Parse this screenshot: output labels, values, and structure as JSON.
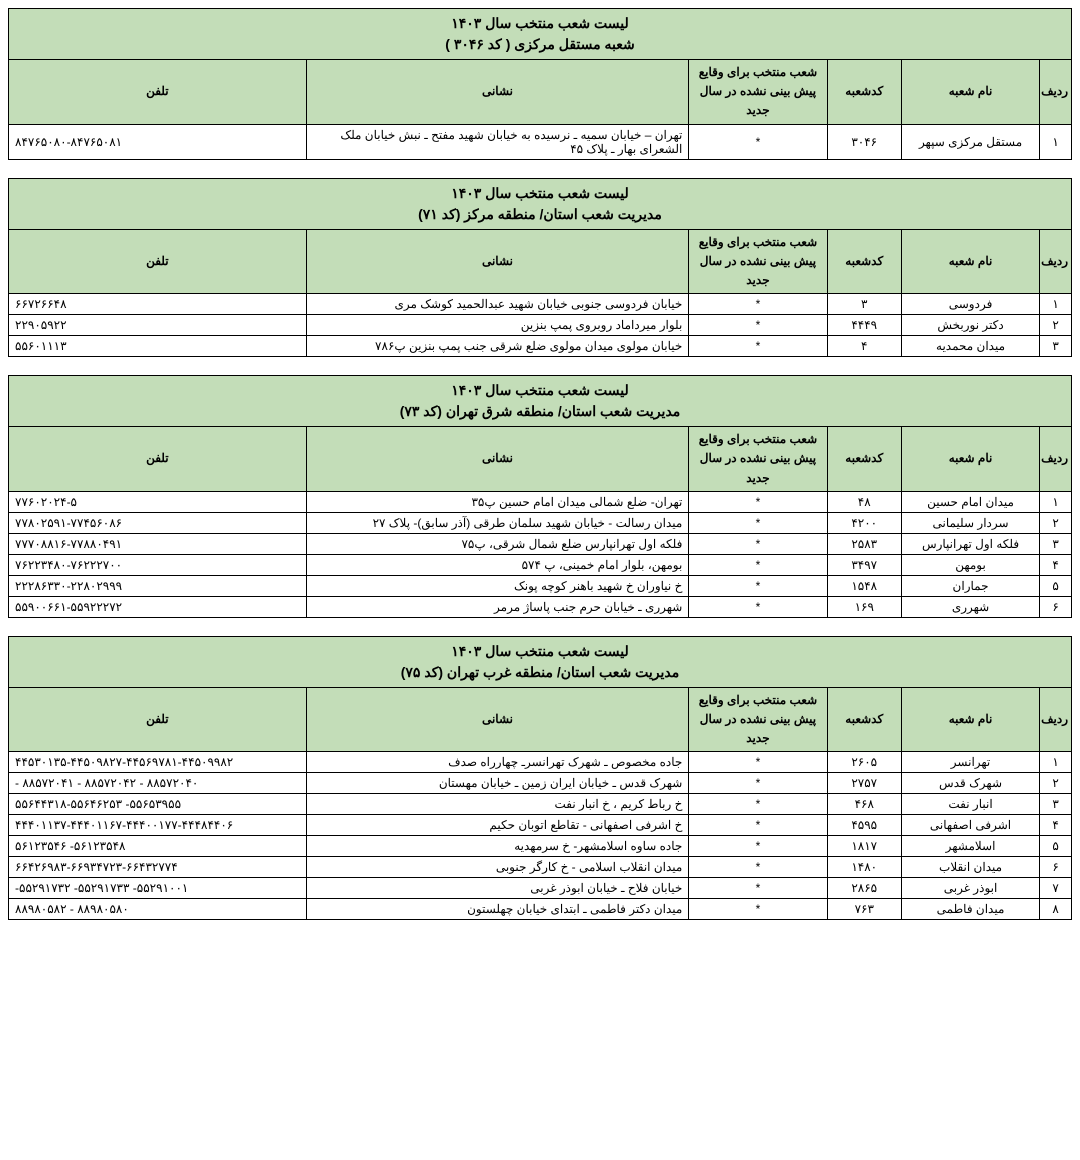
{
  "columns": [
    "ردیف",
    "نام شعبه",
    "کدشعبه",
    "شعب منتخب برای وقایع پیش بینی نشده در سال جدید",
    "نشانی",
    "تلفن"
  ],
  "sections": [
    {
      "title1": "لیست شعب منتخب  سال ۱۴۰۳",
      "title2": "شعبه مستقل مرکزی  ( کد ۳۰۴۶ )",
      "rows": [
        {
          "n": "۱",
          "name": "مستقل مرکزی سپهر",
          "code": "۳۰۴۶",
          "sel": "*",
          "addr": "تهران – خیابان سمیه ـ نرسیده به خیابان شهید مفتح ـ نبش خیابان ملک الشعرای بهار ـ پلاک ۴۵",
          "phone": "۸۴۷۶۵۰۸۰-۸۴۷۶۵۰۸۱"
        }
      ]
    },
    {
      "title1": "لیست شعب منتخب  سال ۱۴۰۳",
      "title2": "مدیریت شعب استان/ منطقه مرکز (کد ۷۱)",
      "rows": [
        {
          "n": "۱",
          "name": "فردوسی",
          "code": "۳",
          "sel": "*",
          "addr": "خیابان فردوسی جنوبی خیابان شهید عبدالحمید کوشک مری",
          "phone": "۶۶۷۲۶۶۴۸"
        },
        {
          "n": "۲",
          "name": "دکتر نوربخش",
          "code": "۴۴۴۹",
          "sel": "*",
          "addr": "بلوار میرداماد روبروی پمپ بنزین",
          "phone": "۲۲۹۰۵۹۲۲"
        },
        {
          "n": "۳",
          "name": "میدان محمدیه",
          "code": "۴",
          "sel": "*",
          "addr": "خیابان مولوی میدان مولوی ضلع شرقی جنب پمپ بنزین پ۷۸۶",
          "phone": "۵۵۶۰۱۱۱۳"
        }
      ]
    },
    {
      "title1": "لیست شعب منتخب  سال ۱۴۰۳",
      "title2": "مدیریت شعب استان/ منطقه شرق تهران (کد ۷۳)",
      "rows": [
        {
          "n": "۱",
          "name": "میدان امام حسین",
          "code": "۴۸",
          "sel": "*",
          "addr": "تهران- ضلع شمالی میدان امام حسین پ۳۵",
          "phone": "۷۷۶۰۲۰۲۴-۵"
        },
        {
          "n": "۲",
          "name": "سردار سلیمانی",
          "code": "۴۲۰۰",
          "sel": "*",
          "addr": "میدان رسالت - خیابان شهید سلمان طرقی (آذر سابق)- پلاک ۲۷",
          "phone": "۷۷۸۰۲۵۹۱-۷۷۴۵۶۰۸۶"
        },
        {
          "n": "۳",
          "name": "فلکه اول تهرانپارس",
          "code": "۲۵۸۳",
          "sel": "*",
          "addr": "فلکه اول تهرانپارس ضلع شمال شرقی، پ۷۵",
          "phone": "۷۷۷۰۸۸۱۶-۷۷۸۸۰۴۹۱"
        },
        {
          "n": "۴",
          "name": "بومهن",
          "code": "۳۴۹۷",
          "sel": "*",
          "addr": "بومهن، بلوار امام خمینی، پ ۵۷۴",
          "phone": "۷۶۲۲۳۴۸۰-۷۶۲۲۲۷۰۰"
        },
        {
          "n": "۵",
          "name": "جماران",
          "code": "۱۵۴۸",
          "sel": "*",
          "addr": "خ نیاوران خ شهید باهنر کوچه پونک",
          "phone": "۲۲۲۸۶۳۳۰-۲۲۸۰۲۹۹۹"
        },
        {
          "n": "۶",
          "name": "شهرری",
          "code": "۱۶۹",
          "sel": "*",
          "addr": "شهرری ـ خیابان حرم جنب پاساژ مرمر",
          "phone": "۵۵۹۰۰۶۶۱-۵۵۹۲۲۲۷۲"
        }
      ]
    },
    {
      "title1": "لیست شعب منتخب  سال ۱۴۰۳",
      "title2": "مدیریت شعب استان/ منطقه غرب تهران (کد ۷۵)",
      "rows": [
        {
          "n": "۱",
          "name": "تهرانسر",
          "code": "۲۶۰۵",
          "sel": "*",
          "addr": "جاده مخصوص ـ شهرک تهرانسرـ چهارراه صدف",
          "phone": "۴۴۵۳۰۱۳۵-۴۴۵۰۹۸۲۷-۴۴۵۶۹۷۸۱-۴۴۵۰۹۹۸۲"
        },
        {
          "n": "۲",
          "name": "شهرک قدس",
          "code": "۲۷۵۷",
          "sel": "*",
          "addr": "شهرک قدس ـ خیابان ایران زمین ـ خیابان مهستان",
          "phone": "- ۸۸۵۷۲۰۴۱ - ۸۸۵۷۲۰۴۲ - ۸۸۵۷۲۰۴۰"
        },
        {
          "n": "۳",
          "name": "انبار نفت",
          "code": "۴۶۸",
          "sel": "*",
          "addr": "خ رباط کریم ، خ انبار نفت",
          "phone": "۵۵۶۴۴۳۱۸-۵۵۶۴۶۲۵۳ -۵۵۶۵۳۹۵۵"
        },
        {
          "n": "۴",
          "name": "اشرفی اصفهانی",
          "code": "۴۵۹۵",
          "sel": "*",
          "addr": "خ اشرفی اصفهانی - تقاطع اتوبان حکیم",
          "phone": "۴۴۴۰۱۱۳۷-۴۴۴۰۱۱۶۷-۴۴۴۰۰۱۷۷-۴۴۴۸۴۴۰۶"
        },
        {
          "n": "۵",
          "name": "اسلامشهر",
          "code": "۱۸۱۷",
          "sel": "*",
          "addr": "جاده ساوه اسلامشهر- خ سرمهدیه",
          "phone": "۵۶۱۲۳۵۴۶ -۵۶۱۲۳۵۴۸"
        },
        {
          "n": "۶",
          "name": "میدان انقلاب",
          "code": "۱۴۸۰",
          "sel": "*",
          "addr": "میدان انقلاب اسلامی - خ کارگر جنوبی",
          "phone": "۶۶۴۲۶۹۸۳-۶۶۹۳۴۷۲۳-۶۶۴۳۲۷۷۴"
        },
        {
          "n": "۷",
          "name": "ابوذر غربی",
          "code": "۲۸۶۵",
          "sel": "*",
          "addr": "خیابان فلاح ـ خیابان ابوذر غربی",
          "phone": "-۵۵۲۹۱۷۳۲ -۵۵۲۹۱۷۳۳ -۵۵۲۹۱۰۰۱"
        },
        {
          "n": "۸",
          "name": "میدان فاطمی",
          "code": "۷۶۳",
          "sel": "*",
          "addr": "میدان دکتر فاطمی ـ ابتدای خیابان چهلستون",
          "phone": "۸۸۹۸۰۵۸۲ - ۸۸۹۸۰۵۸۰"
        }
      ]
    }
  ]
}
